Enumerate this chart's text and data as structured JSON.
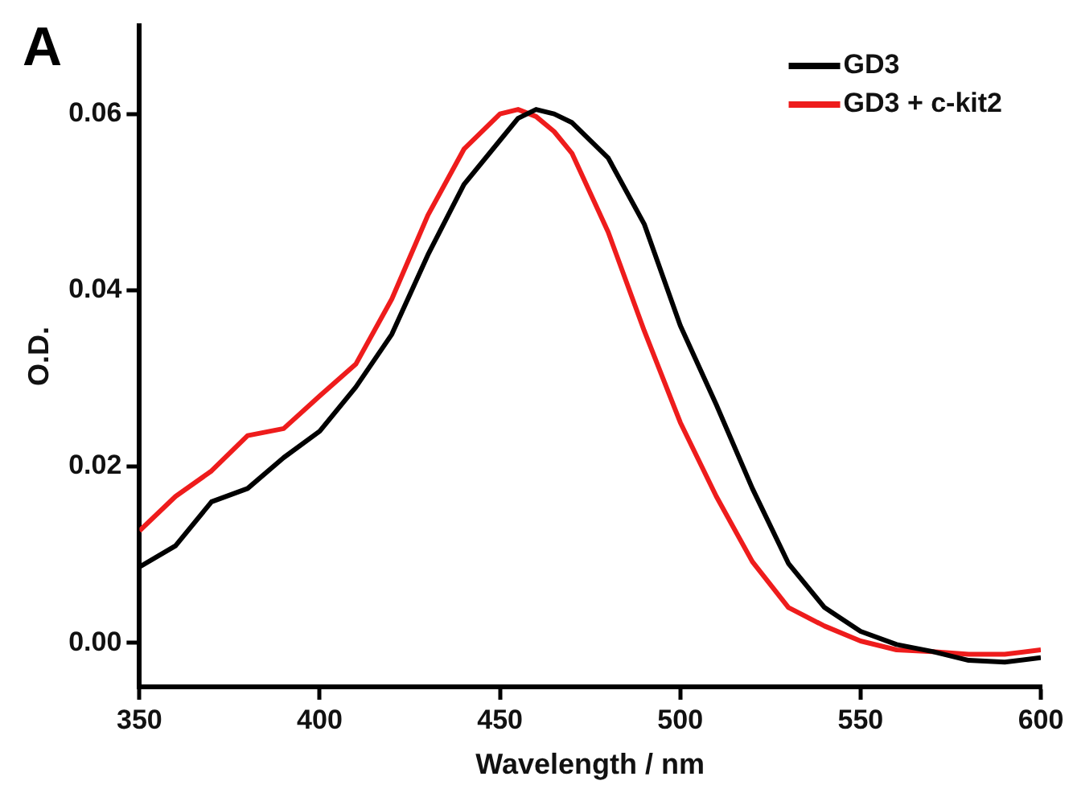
{
  "chart_data": {
    "type": "line",
    "title": "A",
    "xlabel": "Wavelength / nm",
    "ylabel": "O.D.",
    "xlim": [
      350,
      600
    ],
    "xticks": [
      350,
      400,
      450,
      500,
      550,
      600
    ],
    "ylim": [
      -0.005,
      0.07
    ],
    "yticks": [
      {
        "value": 0,
        "label": "0.00"
      },
      {
        "value": 0.02,
        "label": "0.02"
      },
      {
        "value": 0.04,
        "label": "0.04"
      },
      {
        "value": 0.06,
        "label": "0.06"
      }
    ],
    "x": [
      350,
      360,
      370,
      380,
      390,
      400,
      410,
      420,
      430,
      440,
      450,
      455,
      460,
      465,
      470,
      480,
      490,
      500,
      510,
      520,
      530,
      540,
      550,
      560,
      570,
      580,
      590,
      600
    ],
    "series": [
      {
        "name": "GD3",
        "color": "#000000",
        "values": [
          0.0086,
          0.011,
          0.016,
          0.0175,
          0.021,
          0.024,
          0.029,
          0.035,
          0.044,
          0.052,
          0.057,
          0.0595,
          0.0605,
          0.06,
          0.059,
          0.055,
          0.0475,
          0.036,
          0.027,
          0.0175,
          0.009,
          0.004,
          0.0013,
          -0.0002,
          -0.001,
          -0.002,
          -0.0022,
          -0.0017
        ]
      },
      {
        "name": "GD3 + c-kit2",
        "color": "#ee1c1c",
        "values": [
          0.0127,
          0.0166,
          0.0195,
          0.0235,
          0.0243,
          0.028,
          0.0316,
          0.039,
          0.0485,
          0.056,
          0.06,
          0.0605,
          0.0597,
          0.058,
          0.0555,
          0.0466,
          0.0354,
          0.025,
          0.0166,
          0.0092,
          0.004,
          0.0019,
          0.0002,
          -0.0008,
          -0.001,
          -0.0013,
          -0.0013,
          -0.0008
        ]
      }
    ],
    "grid": false,
    "legend": "top right",
    "marker": "none",
    "line_style": "solid"
  }
}
